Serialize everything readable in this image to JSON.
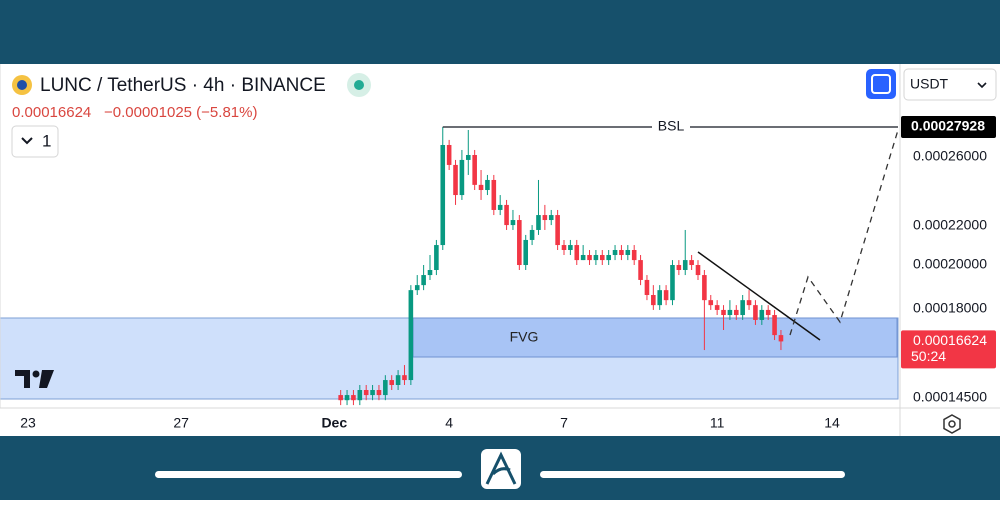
{
  "chart_data": {
    "type": "candlestick",
    "title": "LUNC / TetherUS · 4h · BINANCE",
    "last_price": {
      "value": 0.00016624,
      "label": "0.00016624"
    },
    "change": "−0.00001025 (−5.81%)",
    "interval_button": "1",
    "currency": "USDT",
    "countdown": "50:24",
    "annotations": [
      {
        "text": "BSL",
        "value": 0.00027928,
        "label": "0.00027928"
      },
      {
        "text": "FVG"
      }
    ],
    "log": true,
    "up_color": "#089981",
    "down_color": "#f23645",
    "ylim": [
      0.0001415,
      0.0003253
    ],
    "yticks": [
      {
        "value": 0.00026,
        "label": "0.00026000"
      },
      {
        "value": 0.00022,
        "label": "0.00022000"
      },
      {
        "value": 0.0002,
        "label": "0.00020000"
      },
      {
        "value": 0.00018,
        "label": "0.00018000"
      },
      {
        "value": 0.000145,
        "label": "0.00014500"
      }
    ],
    "categories": [
      "23",
      null,
      null,
      null,
      null,
      null,
      null,
      null,
      null,
      null,
      null,
      null,
      null,
      null,
      null,
      null,
      null,
      null,
      null,
      null,
      null,
      null,
      null,
      null,
      "27",
      null,
      null,
      null,
      null,
      null,
      null,
      null,
      null,
      null,
      null,
      null,
      null,
      null,
      null,
      null,
      null,
      null,
      null,
      null,
      null,
      null,
      null,
      null,
      "Dec",
      null,
      null,
      null,
      null,
      null,
      null,
      null,
      null,
      null,
      null,
      null,
      null,
      null,
      null,
      null,
      null,
      null,
      "4",
      null,
      null,
      null,
      null,
      null,
      null,
      null,
      null,
      null,
      null,
      null,
      null,
      null,
      null,
      null,
      null,
      null,
      "7",
      null,
      null,
      null,
      null,
      null,
      null,
      null,
      null,
      null,
      null,
      null,
      null,
      null,
      null,
      null,
      null,
      null,
      null,
      null,
      null,
      null,
      null,
      null,
      "11",
      null,
      null,
      null,
      null,
      null,
      null,
      null,
      null,
      null,
      null,
      null,
      null,
      null,
      null,
      null,
      null,
      null,
      "14"
    ],
    "open": [
      null,
      null,
      null,
      null,
      null,
      null,
      null,
      null,
      null,
      null,
      null,
      null,
      null,
      null,
      null,
      null,
      null,
      null,
      null,
      null,
      null,
      null,
      null,
      null,
      null,
      null,
      null,
      null,
      null,
      null,
      null,
      null,
      null,
      null,
      null,
      null,
      null,
      null,
      null,
      null,
      null,
      null,
      null,
      null,
      null,
      null,
      null,
      null,
      null,
      0.000146,
      0.0001442,
      0.000146,
      0.0001442,
      0.0001478,
      0.000146,
      0.0001478,
      0.000146,
      0.0001514,
      0.0001496,
      0.0001532,
      0.0001514,
      0.0001882,
      0.0001905,
      0.0001952,
      0.0001976,
      0.0002099,
      0.0002674,
      0.0002548,
      0.0002369,
      0.0002579,
      0.000261,
      0.0002428,
      0.0002398,
      0.0002457,
      0.0002285,
      0.0002313,
      0.0002203,
      0.000223,
      0.0002,
      0.0002125,
      0.0002177,
      0.0002257,
      0.000223,
      0.0002257,
      0.0002099,
      0.0002074,
      0.0002099,
      0.0002024,
      0.0002049,
      0.0002024,
      0.0002049,
      0.0002024,
      0.0002049,
      0.0002074,
      0.0002049,
      0.0002074,
      0.0002024,
      0.0001929,
      0.000186,
      0.0001815,
      0.0001882,
      0.0001837,
      0.0002,
      0.0001976,
      0.0002024,
      0.0002,
      0.0001952,
      0.0001837,
      0.0001815,
      0.0001794,
      0.0001772,
      0.0001794,
      0.0001772,
      0.0001837,
      0.0001815,
      0.0001751,
      0.0001794,
      0.0001772,
      0.0001688,
      null,
      null,
      null,
      null,
      null,
      null,
      null,
      null
    ],
    "high": [
      null,
      null,
      null,
      null,
      null,
      null,
      null,
      null,
      null,
      null,
      null,
      null,
      null,
      null,
      null,
      null,
      null,
      null,
      null,
      null,
      null,
      null,
      null,
      null,
      null,
      null,
      null,
      null,
      null,
      null,
      null,
      null,
      null,
      null,
      null,
      null,
      null,
      null,
      null,
      null,
      null,
      null,
      null,
      null,
      null,
      null,
      null,
      null,
      null,
      0.0001478,
      0.0001478,
      0.0001478,
      0.0001496,
      0.0001496,
      0.0001496,
      0.0001496,
      0.0001532,
      0.0001532,
      0.0001551,
      0.000157,
      0.0001905,
      0.0001952,
      0.0002,
      0.0002049,
      0.0002125,
      0.00027928,
      0.0002707,
      0.0002579,
      0.0002642,
      0.0002773,
      0.0002642,
      0.0002517,
      0.0002487,
      0.0002487,
      0.0002369,
      0.0002341,
      0.0002285,
      0.0002257,
      0.0002151,
      0.0002203,
      0.0002457,
      0.0002313,
      0.0002285,
      0.0002285,
      0.0002125,
      0.0002125,
      0.0002125,
      0.0002099,
      0.0002074,
      0.0002074,
      0.0002074,
      0.0002074,
      0.0002099,
      0.0002099,
      0.0002099,
      0.0002099,
      0.0002049,
      0.0001952,
      0.0001905,
      0.0001905,
      0.0001905,
      0.0002024,
      0.0002024,
      0.0002177,
      0.0002049,
      0.0002024,
      0.0001976,
      0.000186,
      0.0001837,
      0.0001815,
      0.0001837,
      0.0001815,
      0.000186,
      0.0001882,
      0.0001837,
      0.0001815,
      0.0001815,
      0.0001794,
      0.0001709,
      null,
      null,
      null,
      null,
      null,
      null,
      null,
      null
    ],
    "low": [
      null,
      null,
      null,
      null,
      null,
      null,
      null,
      null,
      null,
      null,
      null,
      null,
      null,
      null,
      null,
      null,
      null,
      null,
      null,
      null,
      null,
      null,
      null,
      null,
      null,
      null,
      null,
      null,
      null,
      null,
      null,
      null,
      null,
      null,
      null,
      null,
      null,
      null,
      null,
      null,
      null,
      null,
      null,
      null,
      null,
      null,
      null,
      null,
      null,
      0.0001425,
      0.0001425,
      0.0001425,
      0.0001425,
      0.0001442,
      0.0001442,
      0.0001442,
      0.0001442,
      0.0001478,
      0.0001478,
      0.0001496,
      0.0001496,
      0.000186,
      0.0001882,
      0.0001929,
      0.0001952,
      0.0002074,
      0.0002517,
      0.0002313,
      0.0002341,
      0.0002487,
      0.0002398,
      0.0002341,
      0.0002369,
      0.0002257,
      0.0002257,
      0.0002177,
      0.0002177,
      0.0001976,
      0.0001976,
      0.0002099,
      0.0002151,
      0.0002177,
      0.0002203,
      0.0002074,
      0.0002049,
      0.0002049,
      0.0002,
      0.0002024,
      0.0002,
      0.0002,
      0.0002,
      0.0002,
      0.0002024,
      0.0002024,
      0.0002024,
      0.0002,
      0.0001905,
      0.0001837,
      0.0001794,
      0.0001794,
      0.0001815,
      0.0001815,
      0.0001952,
      0.0001952,
      0.0001976,
      0.0001929,
      0.0001628,
      0.0001794,
      0.0001772,
      0.0001709,
      0.0001751,
      0.0001751,
      0.0001751,
      0.0001794,
      0.000173,
      0.000173,
      0.0001751,
      0.0001668,
      0.0001628,
      null,
      null,
      null,
      null,
      null,
      null,
      null,
      null
    ],
    "close": [
      null,
      null,
      null,
      null,
      null,
      null,
      null,
      null,
      null,
      null,
      null,
      null,
      null,
      null,
      null,
      null,
      null,
      null,
      null,
      null,
      null,
      null,
      null,
      null,
      null,
      null,
      null,
      null,
      null,
      null,
      null,
      null,
      null,
      null,
      null,
      null,
      null,
      null,
      null,
      null,
      null,
      null,
      null,
      null,
      null,
      null,
      null,
      null,
      null,
      0.0001442,
      0.000146,
      0.0001442,
      0.0001478,
      0.000146,
      0.0001478,
      0.000146,
      0.0001514,
      0.0001496,
      0.0001532,
      0.0001514,
      0.0001882,
      0.0001905,
      0.0001952,
      0.0001976,
      0.0002099,
      0.0002674,
      0.0002548,
      0.0002369,
      0.0002579,
      0.000261,
      0.0002428,
      0.0002398,
      0.0002457,
      0.0002285,
      0.0002313,
      0.0002203,
      0.000223,
      0.0002,
      0.0002125,
      0.0002177,
      0.0002257,
      0.000223,
      0.0002257,
      0.0002099,
      0.0002074,
      0.0002099,
      0.0002024,
      0.0002049,
      0.0002024,
      0.0002049,
      0.0002024,
      0.0002049,
      0.0002074,
      0.0002049,
      0.0002074,
      0.0002024,
      0.0001929,
      0.000186,
      0.0001815,
      0.0001882,
      0.0001837,
      0.0002,
      0.0001976,
      0.0002024,
      0.0002,
      0.0001952,
      0.0001837,
      0.0001815,
      0.0001794,
      0.0001772,
      0.0001794,
      0.0001772,
      0.0001837,
      0.0001815,
      0.0001751,
      0.0001794,
      0.0001772,
      0.0001688,
      0.00016624,
      null,
      null,
      null,
      null,
      null,
      null,
      null,
      null
    ]
  }
}
